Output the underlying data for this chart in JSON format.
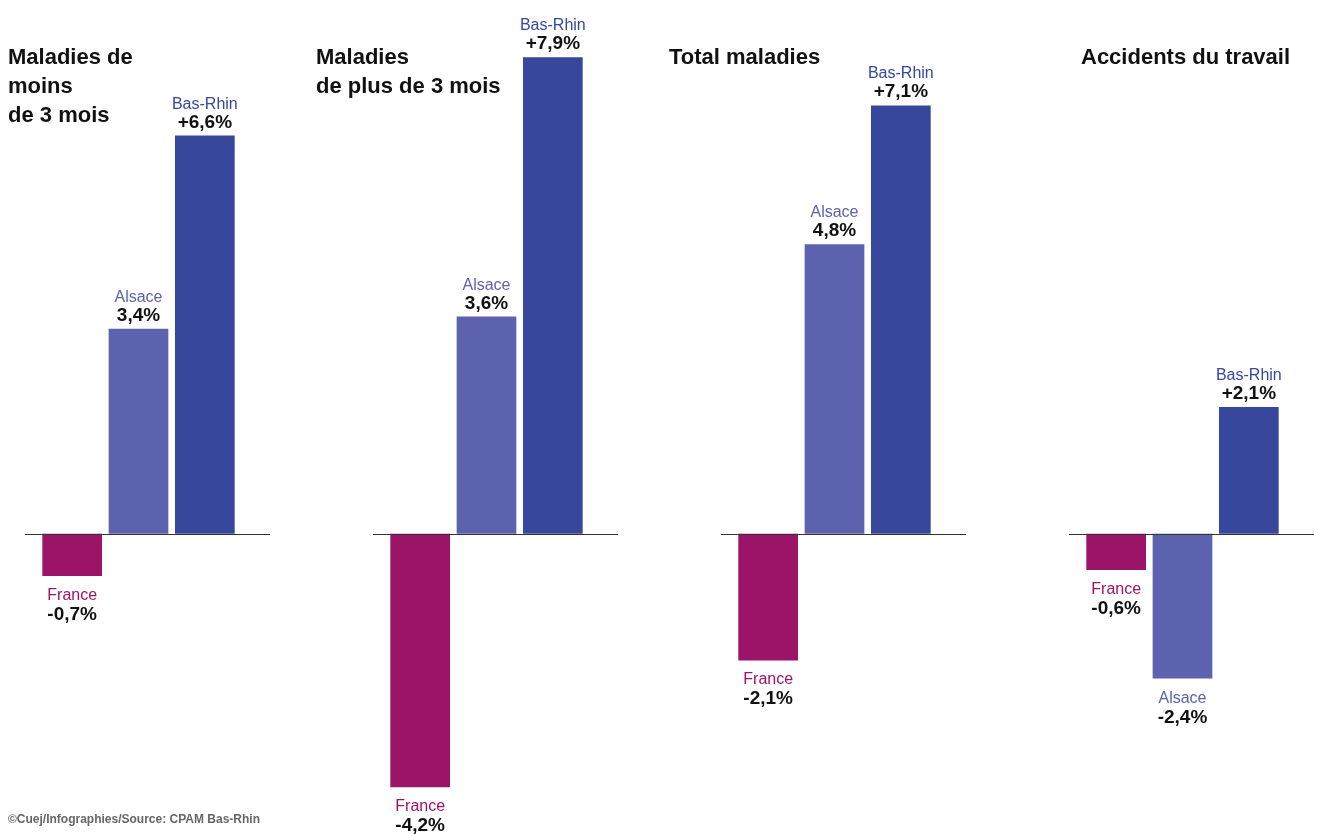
{
  "chart_data": [
    {
      "type": "bar",
      "title": "Maladies de\nmoins\nde 3 mois",
      "categories": [
        null
      ],
      "legend": false,
      "tick_labels": false,
      "annotations": [
        "©Cuej/Infographies/Source: CPAM Bas-Rhin"
      ],
      "series": [
        {
          "name": "France",
          "color": "#9b1468",
          "values": [
            -0.7
          ],
          "value_labels": [
            "-0,7%"
          ]
        },
        {
          "name": "Alsace",
          "color": "#5c62ad",
          "values": [
            3.4
          ],
          "value_labels": [
            "3,4%"
          ]
        },
        {
          "name": "Bas-Rhin",
          "color": "#36479c",
          "values": [
            6.6
          ],
          "value_labels": [
            "+6,6%"
          ]
        }
      ]
    },
    {
      "type": "bar",
      "title": "Maladies\nde plus de 3 mois",
      "categories": [
        null
      ],
      "legend": false,
      "tick_labels": false,
      "series": [
        {
          "name": "France",
          "color": "#9b1468",
          "values": [
            -4.2
          ],
          "value_labels": [
            "-4,2%"
          ]
        },
        {
          "name": "Alsace",
          "color": "#5c62ad",
          "values": [
            3.6
          ],
          "value_labels": [
            "3,6%"
          ]
        },
        {
          "name": "Bas-Rhin",
          "color": "#36479c",
          "values": [
            7.9
          ],
          "value_labels": [
            "+7,9%"
          ]
        }
      ]
    },
    {
      "type": "bar",
      "title": "Total maladies",
      "categories": [
        null
      ],
      "legend": false,
      "tick_labels": false,
      "series": [
        {
          "name": "France",
          "color": "#9b1468",
          "values": [
            -2.1
          ],
          "value_labels": [
            "-2,1%"
          ]
        },
        {
          "name": "Alsace",
          "color": "#5c62ad",
          "values": [
            4.8
          ],
          "value_labels": [
            "4,8%"
          ]
        },
        {
          "name": "Bas-Rhin",
          "color": "#36479c",
          "values": [
            7.1
          ],
          "value_labels": [
            "+7,1%"
          ]
        }
      ]
    },
    {
      "type": "bar",
      "title": "Accidents du travail",
      "categories": [
        null
      ],
      "legend": false,
      "tick_labels": false,
      "series": [
        {
          "name": "France",
          "color": "#9b1468",
          "values": [
            -0.6
          ],
          "value_labels": [
            "-0,6%"
          ]
        },
        {
          "name": "Alsace",
          "color": "#5c62ad",
          "values": [
            -2.4
          ],
          "value_labels": [
            "-2,4%"
          ]
        },
        {
          "name": "Bas-Rhin",
          "color": "#36479c",
          "values": [
            2.1
          ],
          "value_labels": [
            "+2,1%"
          ]
        }
      ]
    }
  ]
}
